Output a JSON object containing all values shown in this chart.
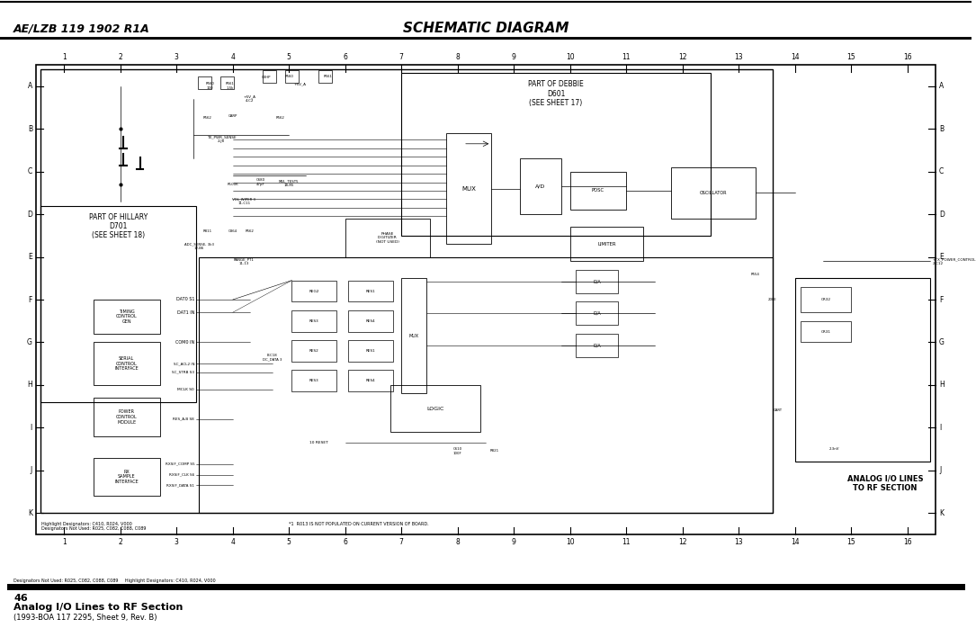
{
  "page_bg": "#ffffff",
  "header_line_color": "#000000",
  "header_text_left": "AE/LZB 119 1902 R1A",
  "header_text_center": "SCHEMATIC DIAGRAM",
  "header_text_color": "#000000",
  "footer_bar_color": "#000000",
  "footer_page_num": "46",
  "footer_title": "Analog I/O Lines to RF Section",
  "footer_subtitle": "(1993-BOA 117 2295, Sheet 9, Rev. B)",
  "grid_rows": [
    "A",
    "B",
    "C",
    "D",
    "E",
    "F",
    "G",
    "H",
    "I",
    "J",
    "K"
  ],
  "grid_cols": [
    "1",
    "2",
    "3",
    "4",
    "5",
    "6",
    "7",
    "8",
    "9",
    "10",
    "11",
    "12",
    "13",
    "14",
    "15",
    "16"
  ],
  "note_text": "*1  R013 IS NOT POPULATED ON CURRENT VERSION OF BOARD.",
  "note_text2": "Designators Not Used: R025, C082, C088, C089",
  "note_text3": "Highlight Designators: C410, R024, V000"
}
